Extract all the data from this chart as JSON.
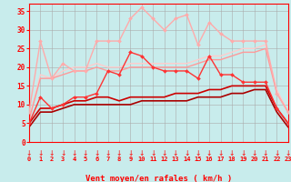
{
  "xlabel": "Vent moyen/en rafales ( km/h )",
  "background_color": "#c8ecec",
  "grid_color": "#aaaaaa",
  "xlim": [
    0,
    23
  ],
  "ylim": [
    0,
    37
  ],
  "yticks": [
    0,
    5,
    10,
    15,
    20,
    25,
    30,
    35
  ],
  "xticks": [
    0,
    1,
    2,
    3,
    4,
    5,
    6,
    7,
    8,
    9,
    10,
    11,
    12,
    13,
    14,
    15,
    16,
    17,
    18,
    19,
    20,
    21,
    22,
    23
  ],
  "series": [
    {
      "x": [
        0,
        1,
        2,
        3,
        4,
        5,
        6,
        7,
        8,
        9,
        10,
        11,
        12,
        13,
        14,
        15,
        16,
        17,
        18,
        19,
        20,
        21,
        22,
        23
      ],
      "y": [
        8,
        27,
        17,
        21,
        19,
        19,
        27,
        27,
        27,
        33,
        36,
        33,
        30,
        33,
        34,
        26,
        32,
        29,
        27,
        27,
        27,
        27,
        13,
        8
      ],
      "color": "#ffaaaa",
      "lw": 1.0,
      "marker": "D",
      "ms": 2.0
    },
    {
      "x": [
        0,
        1,
        2,
        3,
        4,
        5,
        6,
        7,
        8,
        9,
        10,
        11,
        12,
        13,
        14,
        15,
        16,
        17,
        18,
        19,
        20,
        21,
        22,
        23
      ],
      "y": [
        5,
        12,
        9,
        10,
        12,
        12,
        13,
        19,
        18,
        24,
        23,
        20,
        19,
        19,
        19,
        17,
        23,
        18,
        18,
        16,
        16,
        16,
        9,
        5
      ],
      "color": "#ff3333",
      "lw": 1.0,
      "marker": "D",
      "ms": 2.0
    },
    {
      "x": [
        0,
        1,
        2,
        3,
        4,
        5,
        6,
        7,
        8,
        9,
        10,
        11,
        12,
        13,
        14,
        15,
        16,
        17,
        18,
        19,
        20,
        21,
        22,
        23
      ],
      "y": [
        6,
        18,
        17,
        19,
        20,
        20,
        21,
        20,
        20,
        21,
        21,
        21,
        21,
        21,
        21,
        22,
        23,
        23,
        24,
        25,
        25,
        26,
        14,
        8
      ],
      "color": "#ffcccc",
      "lw": 1.0,
      "marker": null,
      "ms": 0
    },
    {
      "x": [
        0,
        1,
        2,
        3,
        4,
        5,
        6,
        7,
        8,
        9,
        10,
        11,
        12,
        13,
        14,
        15,
        16,
        17,
        18,
        19,
        20,
        21,
        22,
        23
      ],
      "y": [
        6,
        17,
        17,
        18,
        19,
        19,
        20,
        19,
        19,
        20,
        20,
        20,
        20,
        20,
        20,
        21,
        22,
        22,
        23,
        24,
        24,
        25,
        13,
        8
      ],
      "color": "#ff9999",
      "lw": 1.0,
      "marker": null,
      "ms": 0
    },
    {
      "x": [
        0,
        1,
        2,
        3,
        4,
        5,
        6,
        7,
        8,
        9,
        10,
        11,
        12,
        13,
        14,
        15,
        16,
        17,
        18,
        19,
        20,
        21,
        22,
        23
      ],
      "y": [
        5,
        9,
        9,
        10,
        11,
        11,
        12,
        12,
        11,
        12,
        12,
        12,
        12,
        13,
        13,
        13,
        14,
        14,
        15,
        15,
        15,
        15,
        9,
        5
      ],
      "color": "#cc0000",
      "lw": 1.2,
      "marker": null,
      "ms": 0
    },
    {
      "x": [
        0,
        1,
        2,
        3,
        4,
        5,
        6,
        7,
        8,
        9,
        10,
        11,
        12,
        13,
        14,
        15,
        16,
        17,
        18,
        19,
        20,
        21,
        22,
        23
      ],
      "y": [
        4,
        8,
        8,
        9,
        10,
        10,
        10,
        10,
        10,
        10,
        11,
        11,
        11,
        11,
        11,
        12,
        12,
        12,
        13,
        13,
        14,
        14,
        8,
        4
      ],
      "color": "#aa0000",
      "lw": 1.2,
      "marker": null,
      "ms": 0
    }
  ]
}
